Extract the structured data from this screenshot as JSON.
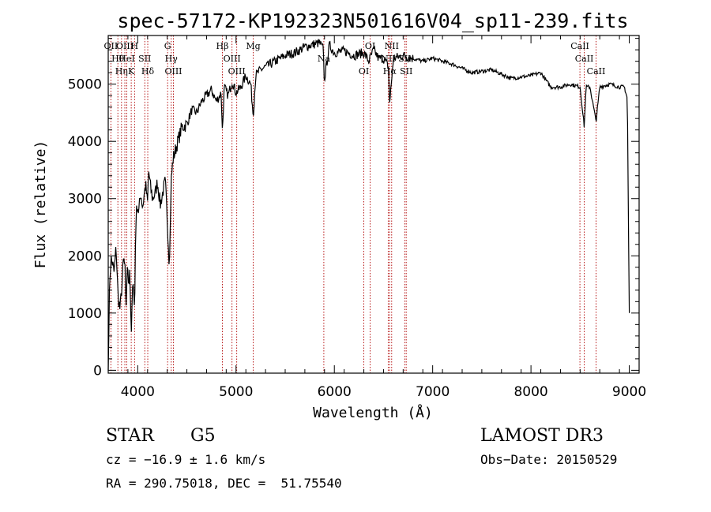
{
  "chart_data": {
    "type": "line",
    "title": "spec-57172-KP192323N501616V04_sp11-239.fits",
    "xlabel": "Wavelength (Å)",
    "ylabel": "Flux (relative)",
    "xlim": [
      3700,
      9100
    ],
    "ylim": [
      -50,
      5850
    ],
    "xticks": [
      4000,
      5000,
      6000,
      7000,
      8000,
      9000
    ],
    "yticks": [
      0,
      1000,
      2000,
      3000,
      4000,
      5000
    ],
    "line_color": "#000000",
    "marker_color": "#b00000",
    "grid": false,
    "series": [
      {
        "x": [
          3700,
          3705,
          3715,
          3730,
          3745,
          3760,
          3780,
          3800,
          3820,
          3840,
          3855,
          3870,
          3880,
          3890,
          3900,
          3910,
          3920,
          3933,
          3945,
          3955,
          3968,
          3980,
          3995,
          4010,
          4030,
          4050,
          4080,
          4100,
          4110,
          4130,
          4150,
          4180,
          4200,
          4230,
          4260,
          4280,
          4300,
          4320,
          4330,
          4340,
          4360,
          4400,
          4450,
          4500,
          4550,
          4600,
          4650,
          4700,
          4750,
          4800,
          4850,
          4861,
          4880,
          4920,
          4960,
          5000,
          5050,
          5100,
          5150,
          5175,
          5200,
          5250,
          5300,
          5400,
          5500,
          5600,
          5700,
          5800,
          5850,
          5890,
          5896,
          5950,
          6000,
          6100,
          6200,
          6300,
          6350,
          6400,
          6450,
          6500,
          6550,
          6563,
          6600,
          6700,
          6800,
          6900,
          7000,
          7200,
          7400,
          7600,
          7800,
          8000,
          8100,
          8200,
          8300,
          8400,
          8500,
          8542,
          8560,
          8600,
          8662,
          8700,
          8800,
          8900,
          8950,
          8980,
          9000
        ],
        "y": [
          0,
          600,
          1600,
          1950,
          1850,
          1700,
          2150,
          1300,
          1050,
          1500,
          1950,
          1800,
          1000,
          1650,
          1800,
          1500,
          1850,
          500,
          1250,
          1700,
          950,
          2600,
          2900,
          2750,
          3100,
          2850,
          3250,
          2900,
          3500,
          3200,
          3000,
          3100,
          3300,
          2900,
          3150,
          3300,
          2650,
          1900,
          2400,
          3300,
          3700,
          3950,
          4250,
          4300,
          4550,
          4500,
          4700,
          4800,
          4900,
          4700,
          4850,
          4150,
          4950,
          4800,
          5050,
          4850,
          4950,
          5150,
          5000,
          4450,
          5150,
          5250,
          5300,
          5400,
          5500,
          5550,
          5650,
          5700,
          5720,
          5600,
          5050,
          5680,
          5550,
          5580,
          5500,
          5550,
          5400,
          5600,
          5450,
          5450,
          5300,
          4650,
          5450,
          5500,
          5450,
          5400,
          5450,
          5350,
          5200,
          5250,
          5100,
          5150,
          5200,
          4950,
          4950,
          5000,
          4950,
          4250,
          4950,
          4950,
          4350,
          4950,
          5000,
          4950,
          4950,
          4750,
          1000
        ]
      }
    ],
    "lines": [
      {
        "x": 3727,
        "label": "OII"
      },
      {
        "x": 3798,
        "label": "Hθ"
      },
      {
        "x": 3835,
        "label": "Hη"
      },
      {
        "x": 3869,
        "label": "OIII"
      },
      {
        "x": 3889,
        "label": "HeI"
      },
      {
        "x": 3934,
        "label": "K"
      },
      {
        "x": 3968,
        "label": "H"
      },
      {
        "x": 4072,
        "label": "SII"
      },
      {
        "x": 4102,
        "label": "Hδ"
      },
      {
        "x": 4304,
        "label": "G"
      },
      {
        "x": 4341,
        "label": "Hγ"
      },
      {
        "x": 4363,
        "label": "OIII"
      },
      {
        "x": 4861,
        "label": "Hβ"
      },
      {
        "x": 4959,
        "label": "OIII"
      },
      {
        "x": 5007,
        "label": "OIII"
      },
      {
        "x": 5175,
        "label": "Mg"
      },
      {
        "x": 5893,
        "label": "Na"
      },
      {
        "x": 6300,
        "label": "OI"
      },
      {
        "x": 6364,
        "label": "OI"
      },
      {
        "x": 6548,
        "label": "NII"
      },
      {
        "x": 6563,
        "label": "Hα"
      },
      {
        "x": 6583,
        "label": "NII"
      },
      {
        "x": 6716,
        "label": "SII"
      },
      {
        "x": 6731,
        "label": "SII"
      },
      {
        "x": 8498,
        "label": "CaII"
      },
      {
        "x": 8542,
        "label": "CaII"
      },
      {
        "x": 8662,
        "label": "CaII"
      }
    ]
  },
  "info": {
    "class": "STAR",
    "subclass": "G5",
    "survey": "LAMOST DR3",
    "cz": "cz = −16.9 ± 1.6 km/s",
    "obs_date": "Obs−Date: 20150529",
    "coords": "RA = 290.75018, DEC =  51.75540"
  }
}
